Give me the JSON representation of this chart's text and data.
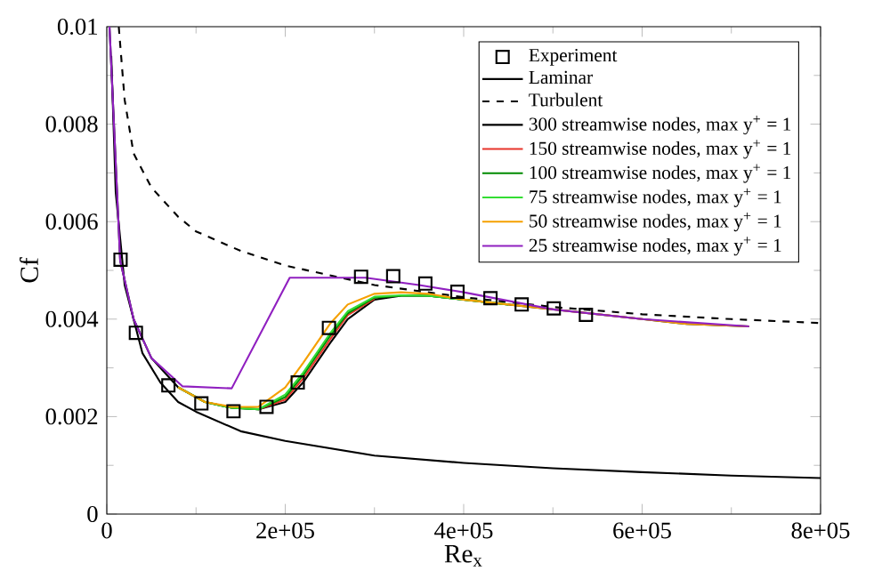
{
  "chart_data": {
    "type": "line",
    "xlabel": "Re$_{x}$",
    "ylabel": "Cf",
    "xlim": [
      0,
      800000
    ],
    "ylim": [
      0,
      0.01
    ],
    "xticks": [
      0,
      {
        "value": 200000,
        "label": "2e+05"
      },
      {
        "value": 400000,
        "label": "4e+05"
      },
      {
        "value": 600000,
        "label": "6e+05"
      },
      {
        "value": 800000,
        "label": "8e+05"
      }
    ],
    "yticks": [
      0,
      0.002,
      0.004,
      0.006,
      0.008,
      0.01
    ],
    "grid": false,
    "legend": "top right",
    "series": [
      {
        "name": "Experiment",
        "type": "scatter",
        "marker": "square",
        "color": "#000000",
        "x": [
          15400,
          32600,
          69000,
          106000,
          142000,
          179000,
          214000,
          249000,
          285000,
          321000,
          357000,
          393000,
          430000,
          465000,
          501000,
          537000
        ],
        "values": [
          0.00522,
          0.00372,
          0.00264,
          0.00227,
          0.00211,
          0.0022,
          0.0027,
          0.00382,
          0.00487,
          0.00488,
          0.00473,
          0.00456,
          0.00443,
          0.0043,
          0.00422,
          0.00409
        ]
      },
      {
        "name": "Laminar",
        "line_style": "solid",
        "color": "#000000",
        "x": [
          5000,
          10000,
          20000,
          40000,
          60000,
          80000,
          100000,
          150000,
          200000,
          300000,
          400000,
          500000,
          600000,
          700000,
          800000
        ],
        "values": [
          0.0094,
          0.0066,
          0.0047,
          0.0033,
          0.0027,
          0.0023,
          0.0021,
          0.0017,
          0.0015,
          0.0012,
          0.00105,
          0.00094,
          0.00086,
          0.00079,
          0.00074
        ]
      },
      {
        "name": "Turbulent",
        "line_style": "dashed",
        "color": "#000000",
        "x": [
          13400,
          20000,
          30000,
          50000,
          80000,
          100000,
          150000,
          200000,
          300000,
          400000,
          500000,
          600000,
          700000,
          800000
        ],
        "values": [
          0.01,
          0.0085,
          0.0074,
          0.0067,
          0.0061,
          0.0058,
          0.0054,
          0.0051,
          0.0047,
          0.00445,
          0.00425,
          0.0041,
          0.004,
          0.00392
        ]
      },
      {
        "name": "300 streamwise nodes, max y$^{+}$ = 1",
        "line_style": "solid",
        "color": "#000000",
        "x": [
          3000,
          15000,
          30000,
          50000,
          80000,
          110000,
          140000,
          170000,
          200000,
          220000,
          250000,
          270000,
          300000,
          330000,
          360000,
          400000,
          450000,
          500000,
          550000,
          600000,
          650000,
          720000
        ],
        "values": [
          0.01,
          0.0052,
          0.004,
          0.0032,
          0.0026,
          0.0023,
          0.00218,
          0.00215,
          0.0023,
          0.0027,
          0.0035,
          0.004,
          0.0044,
          0.00448,
          0.00448,
          0.0044,
          0.0043,
          0.0042,
          0.0041,
          0.004,
          0.0039,
          0.00385
        ]
      },
      {
        "name": "150 streamwise nodes, max y$^{+}$ = 1",
        "line_style": "solid",
        "color": "#e8342a",
        "x": [
          170000,
          200000,
          220000,
          250000,
          270000,
          300000
        ],
        "values": [
          0.00215,
          0.00235,
          0.00278,
          0.00358,
          0.00408,
          0.00442
        ]
      },
      {
        "name": "100 streamwise nodes, max y$^{+}$ = 1",
        "line_style": "solid",
        "color": "#008a00",
        "x": [
          80000,
          110000,
          140000,
          170000,
          200000,
          220000,
          250000,
          270000,
          300000,
          330000,
          360000,
          400000,
          450000
        ],
        "values": [
          0.0026,
          0.0023,
          0.00218,
          0.00215,
          0.0024,
          0.00285,
          0.00365,
          0.00412,
          0.00444,
          0.00448,
          0.00448,
          0.0044,
          0.0043
        ]
      },
      {
        "name": "75 streamwise nodes, max y$^{+}$ = 1",
        "line_style": "solid",
        "color": "#33dd33",
        "x": [
          80000,
          110000,
          140000,
          170000,
          200000,
          220000,
          250000,
          270000,
          300000,
          330000,
          360000,
          400000,
          450000
        ],
        "values": [
          0.0026,
          0.0023,
          0.00218,
          0.00215,
          0.00245,
          0.0029,
          0.0037,
          0.00416,
          0.00446,
          0.00449,
          0.00448,
          0.0044,
          0.0043
        ]
      },
      {
        "name": "50 streamwise nodes, max y$^{+}$ = 1",
        "line_style": "solid",
        "color": "#f5a000",
        "x": [
          80000,
          110000,
          140000,
          170000,
          200000,
          220000,
          250000,
          270000,
          300000,
          330000,
          360000,
          400000,
          450000,
          500000,
          550000,
          600000,
          650000,
          720000
        ],
        "values": [
          0.0026,
          0.0023,
          0.0022,
          0.0022,
          0.0026,
          0.0031,
          0.0039,
          0.0043,
          0.00452,
          0.00455,
          0.00452,
          0.0044,
          0.0043,
          0.0042,
          0.0041,
          0.004,
          0.0039,
          0.00385
        ]
      },
      {
        "name": "25 streamwise nodes, max y$^{+}$ = 1",
        "line_style": "solid",
        "color": "#9020c0",
        "x": [
          3000,
          15000,
          30000,
          50000,
          85000,
          140000,
          205000,
          290000,
          350000,
          400000,
          500000,
          600000,
          720000
        ],
        "values": [
          0.01,
          0.0052,
          0.004,
          0.0032,
          0.00262,
          0.00258,
          0.00485,
          0.00485,
          0.0047,
          0.00455,
          0.0042,
          0.004,
          0.00385
        ]
      }
    ]
  }
}
